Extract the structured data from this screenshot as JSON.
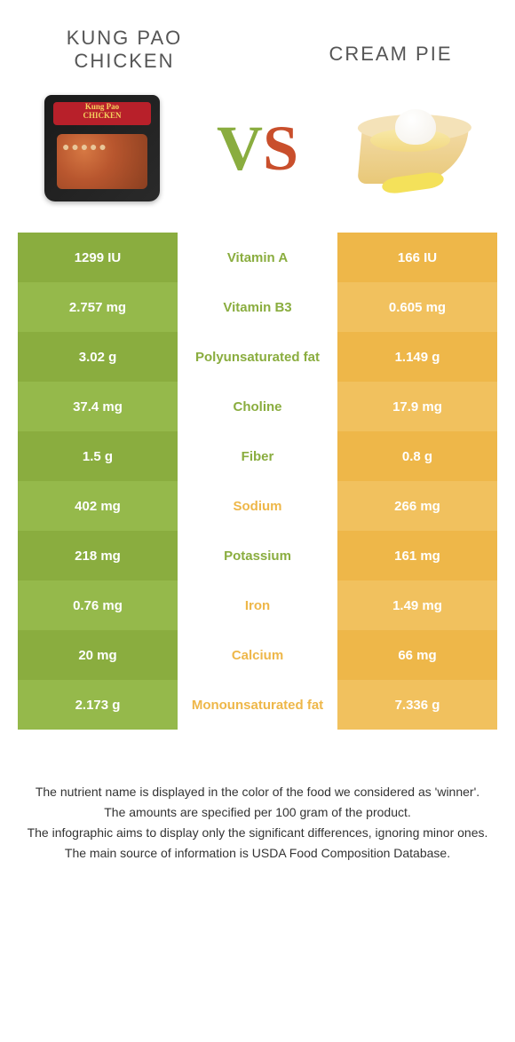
{
  "header": {
    "left_title": "Kung Pao Chicken",
    "right_title": "Cream Pie",
    "vs_v": "V",
    "vs_s": "S"
  },
  "colors": {
    "left_food": "#8aad3f",
    "right_food": "#eeb749",
    "left_alt": "#95b94b",
    "right_alt": "#f1c15e",
    "mid_left_text": "#8aad3f",
    "mid_right_text": "#eeb749"
  },
  "rows": [
    {
      "left": "1299 IU",
      "mid": "Vitamin A",
      "right": "166 IU",
      "winner": "left"
    },
    {
      "left": "2.757 mg",
      "mid": "Vitamin B3",
      "right": "0.605 mg",
      "winner": "left"
    },
    {
      "left": "3.02 g",
      "mid": "Polyunsaturated fat",
      "right": "1.149 g",
      "winner": "left"
    },
    {
      "left": "37.4 mg",
      "mid": "Choline",
      "right": "17.9 mg",
      "winner": "left"
    },
    {
      "left": "1.5 g",
      "mid": "Fiber",
      "right": "0.8 g",
      "winner": "left"
    },
    {
      "left": "402 mg",
      "mid": "Sodium",
      "right": "266 mg",
      "winner": "right"
    },
    {
      "left": "218 mg",
      "mid": "Potassium",
      "right": "161 mg",
      "winner": "left"
    },
    {
      "left": "0.76 mg",
      "mid": "Iron",
      "right": "1.49 mg",
      "winner": "right"
    },
    {
      "left": "20 mg",
      "mid": "Calcium",
      "right": "66 mg",
      "winner": "right"
    },
    {
      "left": "2.173 g",
      "mid": "Monounsaturated fat",
      "right": "7.336 g",
      "winner": "right"
    }
  ],
  "footer": {
    "line1": "The nutrient name is displayed in the color of the food we considered as 'winner'.",
    "line2": "The amounts are specified per 100 gram of the product.",
    "line3": "The infographic aims to display only the significant differences, ignoring minor ones.",
    "line4": "The main source of information is USDA Food Composition Database."
  }
}
